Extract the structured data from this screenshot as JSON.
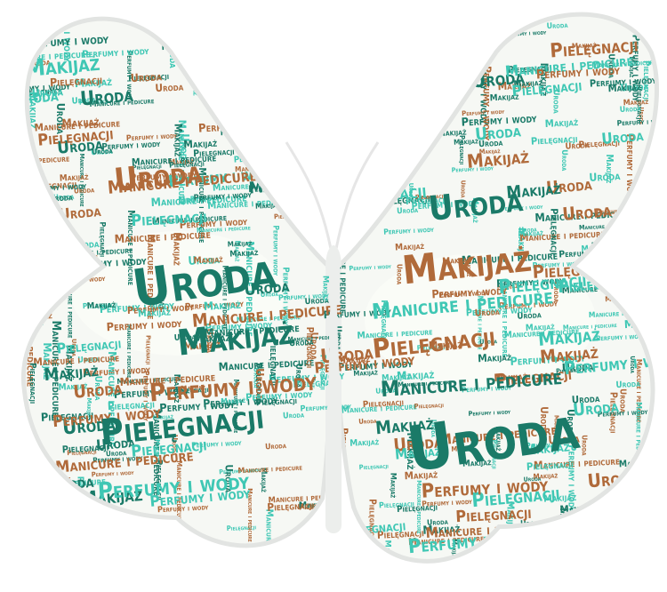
{
  "wordcloud": {
    "shape": "butterfly",
    "palette": {
      "teal": "#1a7a68",
      "aqua": "#3fc7b4",
      "brown": "#b06a3a",
      "wing_fill": "#f3f6f2",
      "wing_outline": "#e6e9e6",
      "antenna": "#e8e8e8"
    },
    "words": [
      "Uroda",
      "Makijaż",
      "Pielęgnacji",
      "Perfumy i wody",
      "Manicure i pedicure"
    ]
  }
}
